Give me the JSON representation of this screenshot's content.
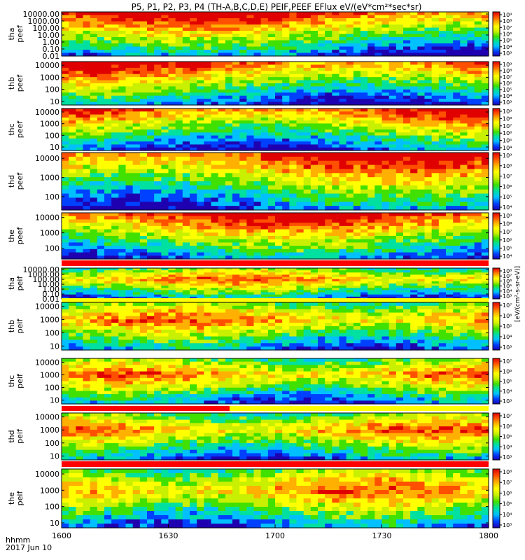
{
  "title": "P5, P1, P2, P3, P4 (TH-A,B,C,D,E) PEIF,PEEF EFlux eV/(eV*cm²*sec*sr)",
  "colorbar_label": "[eV/(cm²-s-sr-eV)]",
  "colors": {
    "spectrum": [
      "#1f00b0",
      "#0040ff",
      "#00c0ff",
      "#00e0a0",
      "#40e000",
      "#c8f000",
      "#ffff00",
      "#ffb000",
      "#ff5000",
      "#e00000"
    ],
    "black": "#000000",
    "red_bar": "#ff0000",
    "yellow_bar": "#ffff00",
    "background": "#ffffff"
  },
  "chart_data": {
    "type": "heatmap",
    "x_axis": {
      "tick_labels": [
        "1600",
        "1630",
        "1700",
        "1730",
        "1800"
      ],
      "ticks": [
        960,
        990,
        1020,
        1050,
        1080
      ],
      "range": [
        960,
        1080
      ],
      "unit_label": "hhmm",
      "date_label": "2017 Jun 10"
    },
    "panels": [
      {
        "id": "tha-peef",
        "ylabel": [
          "tha",
          "peef"
        ],
        "yticks": [
          "10000.00",
          "1000.00",
          "100.00",
          "10.00",
          "1.00",
          "0.10",
          "0.01"
        ],
        "ylog": [
          0.01,
          20000
        ],
        "colorbar_ticks": [
          "10⁹",
          "10⁸",
          "10⁷",
          "10⁶",
          "10⁵",
          "10⁴",
          "10³"
        ],
        "flag_bar": "none"
      },
      {
        "id": "thb-peef",
        "ylabel": [
          "thb",
          "peef"
        ],
        "yticks": [
          "10000",
          "1000",
          "100",
          "10"
        ],
        "ylog": [
          5,
          20000
        ],
        "colorbar_ticks": [
          "10⁹",
          "10⁸",
          "10⁷",
          "10⁶",
          "10⁵",
          "10⁴",
          "10³"
        ],
        "flag_bar": "none"
      },
      {
        "id": "thc-peef",
        "ylabel": [
          "thc",
          "peef"
        ],
        "yticks": [
          "10000",
          "1000",
          "100",
          "10"
        ],
        "ylog": [
          5,
          20000
        ],
        "colorbar_ticks": [
          "10⁹",
          "10⁸",
          "10⁷",
          "10⁶",
          "10⁵",
          "10⁴"
        ],
        "flag_bar": "none"
      },
      {
        "id": "thd-peef",
        "ylabel": [
          "thd",
          "peef"
        ],
        "yticks": [
          "10000",
          "1000",
          "100"
        ],
        "ylog": [
          20,
          20000
        ],
        "colorbar_ticks": [
          "10⁹",
          "10⁸",
          "10⁷",
          "10⁶",
          "10⁵",
          "10⁴"
        ],
        "flag_bar": "none"
      },
      {
        "id": "the-peef",
        "ylabel": [
          "the",
          "peef"
        ],
        "yticks": [
          "10000",
          "1000",
          "100"
        ],
        "ylog": [
          20,
          20000
        ],
        "colorbar_ticks": [
          "10⁹",
          "10⁸",
          "10⁷",
          "10⁶",
          "10⁵",
          "10⁴"
        ],
        "flag_bar": "red"
      },
      {
        "id": "tha-peif",
        "ylabel": [
          "tha",
          "peif"
        ],
        "yticks": [
          "10000.00",
          "1000.00",
          "100.00",
          "10.00",
          "1.00",
          "0.10",
          "0.01"
        ],
        "ylog": [
          0.01,
          20000
        ],
        "colorbar_ticks": [
          "10⁸",
          "10⁷",
          "10⁶",
          "10⁵",
          "10⁴",
          "10³"
        ],
        "flag_bar": "yellow"
      },
      {
        "id": "thb-peif",
        "ylabel": [
          "thb",
          "peif"
        ],
        "yticks": [
          "10000",
          "1000",
          "100",
          "10"
        ],
        "ylog": [
          5,
          20000
        ],
        "colorbar_ticks": [
          "10⁷",
          "10⁶",
          "10⁵",
          "10⁴",
          "10³"
        ],
        "flag_bar": "none"
      },
      {
        "id": "thc-peif",
        "ylabel": [
          "thc",
          "peif"
        ],
        "yticks": [
          "10000",
          "1000",
          "100",
          "10"
        ],
        "ylog": [
          5,
          20000
        ],
        "colorbar_ticks": [
          "10⁷",
          "10⁶",
          "10⁵",
          "10⁴",
          "10³"
        ],
        "flag_bar": "split"
      },
      {
        "id": "thd-peif",
        "ylabel": [
          "thd",
          "peif"
        ],
        "yticks": [
          "10000",
          "1000",
          "100",
          "10"
        ],
        "ylog": [
          5,
          20000
        ],
        "colorbar_ticks": [
          "10⁷",
          "10⁶",
          "10⁵",
          "10⁴",
          "10³"
        ],
        "flag_bar": "red"
      },
      {
        "id": "the-peif",
        "ylabel": [
          "the",
          "peif"
        ],
        "yticks": [
          "10000",
          "1000",
          "100",
          "10"
        ],
        "ylog": [
          5,
          20000
        ],
        "colorbar_ticks": [
          "10⁸",
          "10⁷",
          "10⁶",
          "10⁵",
          "10⁴",
          "10³"
        ],
        "flag_bar": "none"
      }
    ]
  }
}
